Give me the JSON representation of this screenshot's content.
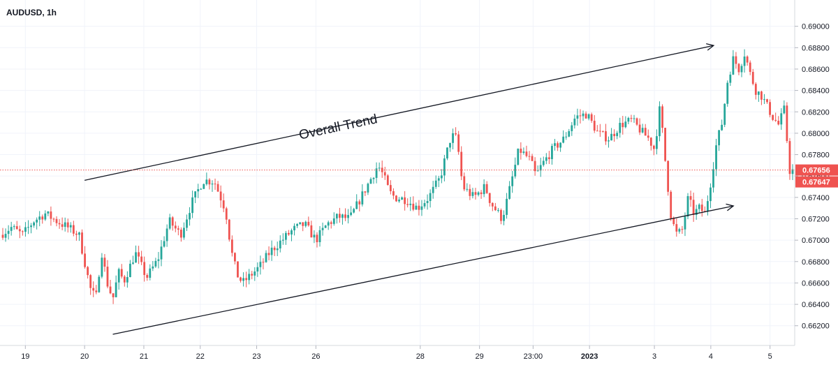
{
  "chart_data": {
    "type": "candlestick",
    "title": "AUDUSD, 1h",
    "ylim": [
      0.661,
      0.691
    ],
    "yticks": [
      0.662,
      0.664,
      0.666,
      0.668,
      0.67,
      0.672,
      0.674,
      0.676,
      0.678,
      0.68,
      0.682,
      0.684,
      0.686,
      0.688,
      0.69
    ],
    "ytick_labels": [
      "0.66200",
      "0.66400",
      "0.66600",
      "0.66800",
      "0.67000",
      "0.67200",
      "0.67400",
      "0.67600",
      "0.67800",
      "0.68000",
      "0.68200",
      "0.68400",
      "0.68600",
      "0.68800",
      "0.69000"
    ],
    "x_range": [
      0,
      140
    ],
    "xticks": [
      {
        "label": "19",
        "x": 4
      },
      {
        "label": "20",
        "x": 14.5
      },
      {
        "label": "21",
        "x": 25
      },
      {
        "label": "22",
        "x": 35
      },
      {
        "label": "23",
        "x": 45
      },
      {
        "label": "26",
        "x": 55.5
      },
      {
        "label": "28",
        "x": 74
      },
      {
        "label": "29",
        "x": 84.5
      },
      {
        "label": "23:00",
        "x": 94
      },
      {
        "label": "2023",
        "x": 104
      },
      {
        "label": "3",
        "x": 115.5
      },
      {
        "label": "4",
        "x": 125.5
      },
      {
        "label": "5",
        "x": 136
      }
    ],
    "bullish_color": "#26a69a",
    "bearish_color": "#ef5350",
    "last_price": {
      "value": 0.67656,
      "label": "0.67656",
      "color": "#ef5350"
    },
    "second_price": {
      "value": 0.67647,
      "label": "0.67647",
      "color": "#ef5350"
    },
    "anchors": [
      [
        0,
        0.6705
      ],
      [
        2,
        0.6712
      ],
      [
        4,
        0.6705
      ],
      [
        6,
        0.6718
      ],
      [
        8,
        0.6725
      ],
      [
        10,
        0.6718
      ],
      [
        12,
        0.6712
      ],
      [
        14,
        0.6705
      ],
      [
        15,
        0.668
      ],
      [
        16,
        0.6655
      ],
      [
        17,
        0.6645
      ],
      [
        18,
        0.669
      ],
      [
        19,
        0.666
      ],
      [
        20,
        0.6645
      ],
      [
        21,
        0.667
      ],
      [
        22,
        0.6662
      ],
      [
        24,
        0.6688
      ],
      [
        26,
        0.6665
      ],
      [
        28,
        0.6682
      ],
      [
        30,
        0.6718
      ],
      [
        32,
        0.6705
      ],
      [
        34,
        0.6735
      ],
      [
        36,
        0.6756
      ],
      [
        38,
        0.6755
      ],
      [
        40,
        0.6728
      ],
      [
        41,
        0.669
      ],
      [
        42,
        0.6668
      ],
      [
        43,
        0.666
      ],
      [
        44,
        0.6665
      ],
      [
        46,
        0.6675
      ],
      [
        48,
        0.669
      ],
      [
        50,
        0.67
      ],
      [
        52,
        0.671
      ],
      [
        54,
        0.6715
      ],
      [
        56,
        0.67
      ],
      [
        58,
        0.6715
      ],
      [
        60,
        0.6722
      ],
      [
        62,
        0.672
      ],
      [
        64,
        0.674
      ],
      [
        66,
        0.676
      ],
      [
        67,
        0.677
      ],
      [
        68,
        0.676
      ],
      [
        69,
        0.6745
      ],
      [
        70,
        0.674
      ],
      [
        72,
        0.6738
      ],
      [
        74,
        0.673
      ],
      [
        76,
        0.674
      ],
      [
        78,
        0.6758
      ],
      [
        80,
        0.6798
      ],
      [
        81,
        0.6795
      ],
      [
        82,
        0.675
      ],
      [
        84,
        0.674
      ],
      [
        86,
        0.675
      ],
      [
        87,
        0.6735
      ],
      [
        89,
        0.672
      ],
      [
        90,
        0.674
      ],
      [
        92,
        0.6785
      ],
      [
        94,
        0.6775
      ],
      [
        95,
        0.676
      ],
      [
        96,
        0.677
      ],
      [
        98,
        0.6785
      ],
      [
        100,
        0.6795
      ],
      [
        102,
        0.6815
      ],
      [
        104,
        0.6818
      ],
      [
        106,
        0.68
      ],
      [
        108,
        0.6795
      ],
      [
        110,
        0.6808
      ],
      [
        112,
        0.6812
      ],
      [
        114,
        0.68
      ],
      [
        115,
        0.6795
      ],
      [
        116,
        0.6785
      ],
      [
        117,
        0.6825
      ],
      [
        118,
        0.677
      ],
      [
        119,
        0.672
      ],
      [
        120,
        0.6705
      ],
      [
        121,
        0.671
      ],
      [
        122,
        0.674
      ],
      [
        123,
        0.6725
      ],
      [
        124,
        0.673
      ],
      [
        125,
        0.6725
      ],
      [
        126,
        0.6755
      ],
      [
        127,
        0.679
      ],
      [
        128,
        0.681
      ],
      [
        129,
        0.685
      ],
      [
        130,
        0.687
      ],
      [
        131,
        0.686
      ],
      [
        132,
        0.6875
      ],
      [
        133,
        0.6855
      ],
      [
        134,
        0.684
      ],
      [
        135,
        0.6835
      ],
      [
        136,
        0.6825
      ],
      [
        137,
        0.6815
      ],
      [
        138,
        0.6808
      ],
      [
        139,
        0.6822
      ],
      [
        140,
        0.6765
      ]
    ],
    "annotations": [
      {
        "text": "Overall Trend",
        "from": [
          14.5,
          0.6756
        ],
        "to": [
          126.0,
          0.6882
        ],
        "arrow": true
      },
      {
        "text": "",
        "from": [
          19.5,
          0.6612
        ],
        "to": [
          129.5,
          0.6732
        ],
        "arrow": true
      }
    ]
  }
}
